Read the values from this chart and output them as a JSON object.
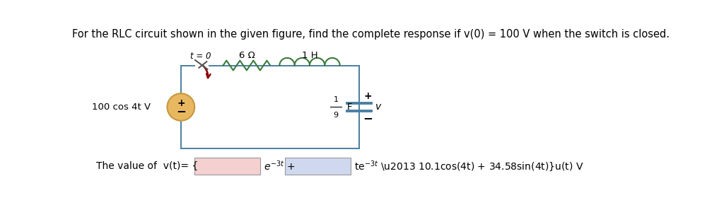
{
  "title": "For the RLC circuit shown in the given figure, find the complete response if v(0) = 100 V when the switch is closed.",
  "title_fontsize": 10.5,
  "bg_color": "#ffffff",
  "source_label": "100 cos 4t V",
  "resistor_label": "6 Ω",
  "inductor_label": "1 H",
  "capacitor_label_frac": "1",
  "capacitor_label_denom": "9",
  "capacitor_label_F": "F",
  "switch_label": "t = 0",
  "bottom_text_prefix": "The value of  v(t)= {",
  "box1_color": "#f5d0d0",
  "box2_color": "#d0d8f0",
  "text_color": "#000000",
  "wire_color": "#4a7fa0",
  "resistor_color": "#3a7a3a",
  "inductor_color": "#3a7a3a",
  "source_circle_color": "#e8b860",
  "source_circle_edge": "#c89840",
  "switch_color": "#555555",
  "switch_arrow_color": "#8b0000"
}
